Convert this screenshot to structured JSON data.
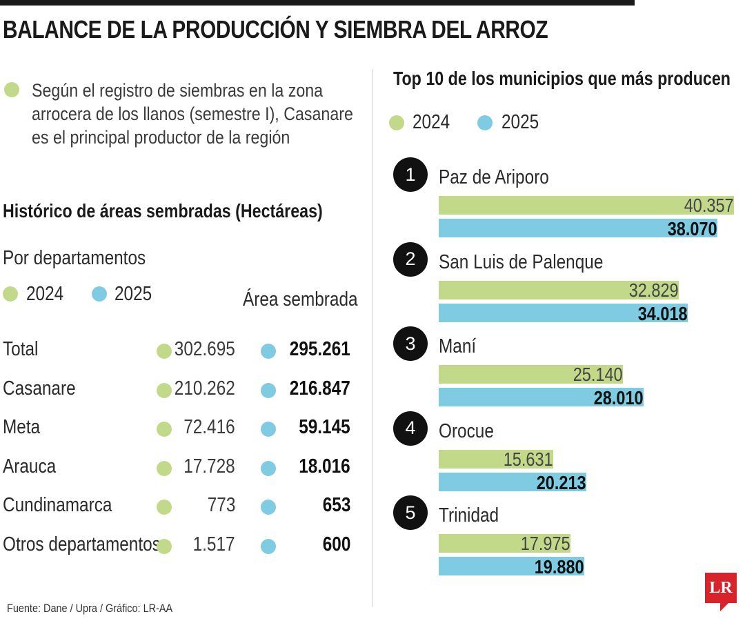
{
  "title": "BALANCE DE LA PRODUCCIÓN Y SIEMBRA DEL ARROZ",
  "intro_lines": [
    "Según el registro de siembras en la zona",
    "arrocera de los llanos (semestre I), Casanare",
    "es el principal productor de la región"
  ],
  "source": "Fuente: Dane / Upra / Gráfico: LR-AA",
  "logo_text": "LR",
  "colors": {
    "y2024": "#c2d98a",
    "y2025": "#7ecbe2",
    "logo": "#d8232a"
  },
  "left": {
    "heading": "Histórico de áreas sembradas (Hectáreas)",
    "subheading": "Por departamentos",
    "legend": [
      "2024",
      "2025"
    ],
    "area_label": "Área sembrada",
    "rows": [
      {
        "name": "Total",
        "v2024": "302.695",
        "v2025": "295.261"
      },
      {
        "name": "Casanare",
        "v2024": "210.262",
        "v2025": "216.847"
      },
      {
        "name": "Meta",
        "v2024": "72.416",
        "v2025": "59.145"
      },
      {
        "name": "Arauca",
        "v2024": "17.728",
        "v2025": "18.016"
      },
      {
        "name": "Cundinamarca",
        "v2024": "773",
        "v2025": "653"
      },
      {
        "name": "Otros departamentos",
        "v2024": "1.517",
        "v2025": "600"
      }
    ]
  },
  "chart_data": {
    "type": "bar",
    "title": "Top 10 de los municipios que más producen",
    "categories": [
      "Paz de Ariporo",
      "San Luis de Palenque",
      "Maní",
      "Orocue",
      "Trinidad"
    ],
    "ranks": [
      "1",
      "2",
      "3",
      "4",
      "5"
    ],
    "series": [
      {
        "name": "2024",
        "values": [
          40357,
          32829,
          25140,
          15631,
          17975
        ],
        "labels": [
          "40.357",
          "32.829",
          "25.140",
          "15.631",
          "17.975"
        ]
      },
      {
        "name": "2025",
        "values": [
          38070,
          34018,
          28010,
          20213,
          19880
        ],
        "labels": [
          "38.070",
          "34.018",
          "28.010",
          "20.213",
          "19.880"
        ]
      }
    ],
    "legend": [
      "2024",
      "2025"
    ]
  }
}
